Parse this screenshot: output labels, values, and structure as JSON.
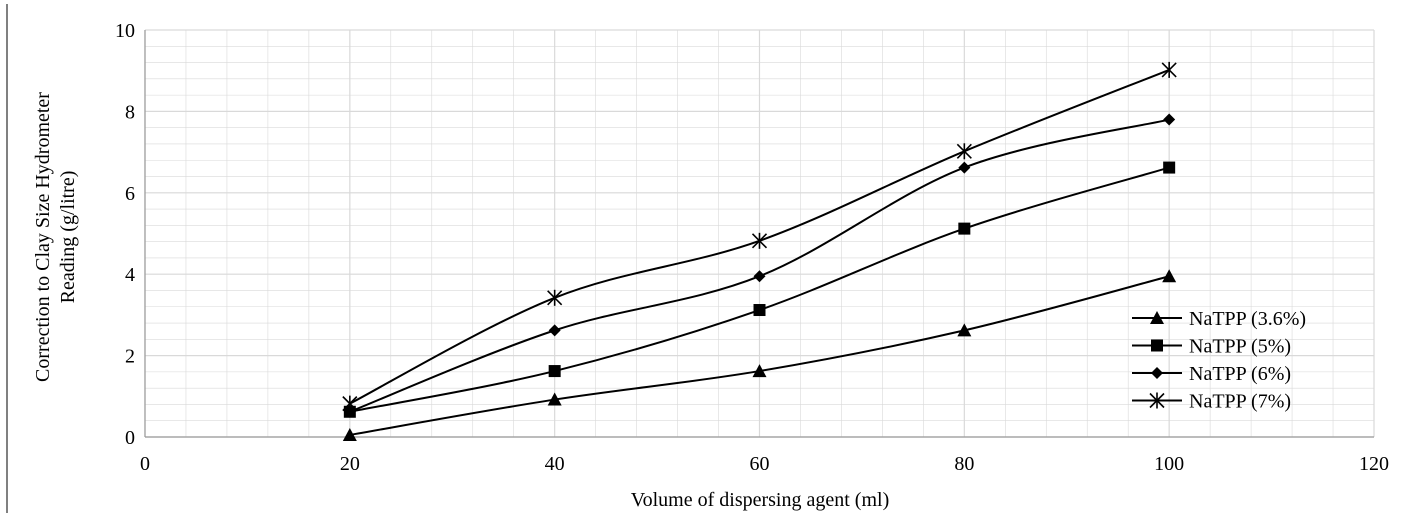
{
  "chart_data": {
    "type": "line",
    "xlabel": "Volume  of dispersing agent (ml)",
    "ylabel_lines": [
      "Correction to Clay  Size  Hydrometer",
      "Reading  (g/litre)"
    ],
    "xlim": [
      0,
      120
    ],
    "ylim": [
      0,
      10
    ],
    "x_ticks": [
      "0",
      "20",
      "40",
      "60",
      "80",
      "100",
      "120"
    ],
    "y_ticks": [
      "0",
      "2",
      "4",
      "6",
      "8",
      "10"
    ],
    "grid": true,
    "minor_grid": true,
    "legend_position": "bottom-right",
    "x": [
      20,
      40,
      60,
      80,
      100
    ],
    "series": [
      {
        "name": "NaTPP (3.6%)",
        "marker": "triangle",
        "values": [
          0.05,
          0.92,
          1.62,
          2.62,
          3.95
        ]
      },
      {
        "name": "NaTPP (5%)",
        "marker": "square",
        "values": [
          0.62,
          1.62,
          3.12,
          5.12,
          6.62
        ]
      },
      {
        "name": "NaTPP (6%)",
        "marker": "diamond",
        "values": [
          0.62,
          2.62,
          3.95,
          6.62,
          7.8
        ]
      },
      {
        "name": "NaTPP (7%)",
        "marker": "asterisk",
        "values": [
          0.82,
          3.42,
          4.82,
          7.02,
          9.02
        ]
      }
    ],
    "line_color": "#000000",
    "grid_color": "#d9d9d9"
  }
}
